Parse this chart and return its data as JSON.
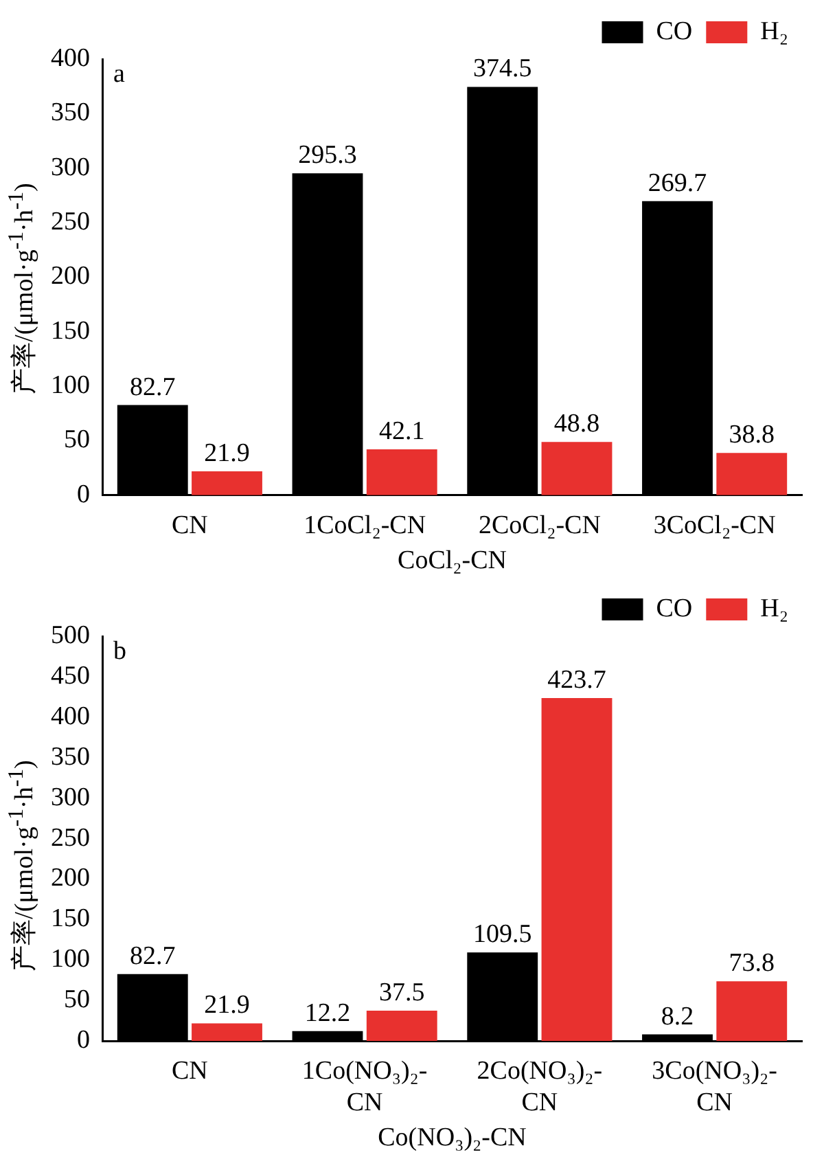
{
  "chart_data": [
    {
      "type": "bar",
      "categories": [
        "CN",
        "1CoCl₂-CN",
        "2CoCl₂-CN",
        "3CoCl₂-CN"
      ],
      "xlabel": "CoCl₂-CN",
      "ylabel": "产率/(μmol·g$^{-1}$·h$^{-1}$)",
      "annotations": [
        "a"
      ],
      "series": [
        {
          "name": "CO",
          "color": "#000000",
          "values": [
            82.7,
            295.3,
            374.5,
            269.7
          ]
        },
        {
          "name": "H₂",
          "color": "#e8312f",
          "values": [
            21.9,
            42.1,
            48.8,
            38.8
          ]
        }
      ],
      "ylim": [
        0,
        400
      ],
      "yticks": [
        0,
        50,
        100,
        150,
        200,
        250,
        300,
        350,
        400
      ],
      "legend": "top right",
      "data_labels": true
    },
    {
      "type": "bar",
      "categories": [
        "CN",
        "1Co(NO₃)₂-CN",
        "2Co(NO₃)₂-CN",
        "3Co(NO₃)₂-CN"
      ],
      "xlabel": "Co(NO₃)₂-CN",
      "ylabel": "产率/(μmol·g$^{-1}$·h$^{-1}$)",
      "annotations": [
        "b"
      ],
      "series": [
        {
          "name": "CO",
          "color": "#000000",
          "values": [
            82.7,
            12.2,
            109.5,
            8.2
          ]
        },
        {
          "name": "H₂",
          "color": "#e8312f",
          "values": [
            21.9,
            37.5,
            423.7,
            73.8
          ]
        }
      ],
      "ylim": [
        0,
        500
      ],
      "yticks": [
        0,
        50,
        100,
        150,
        200,
        250,
        300,
        350,
        400,
        450,
        500
      ],
      "legend": "top right",
      "data_labels": true
    }
  ]
}
